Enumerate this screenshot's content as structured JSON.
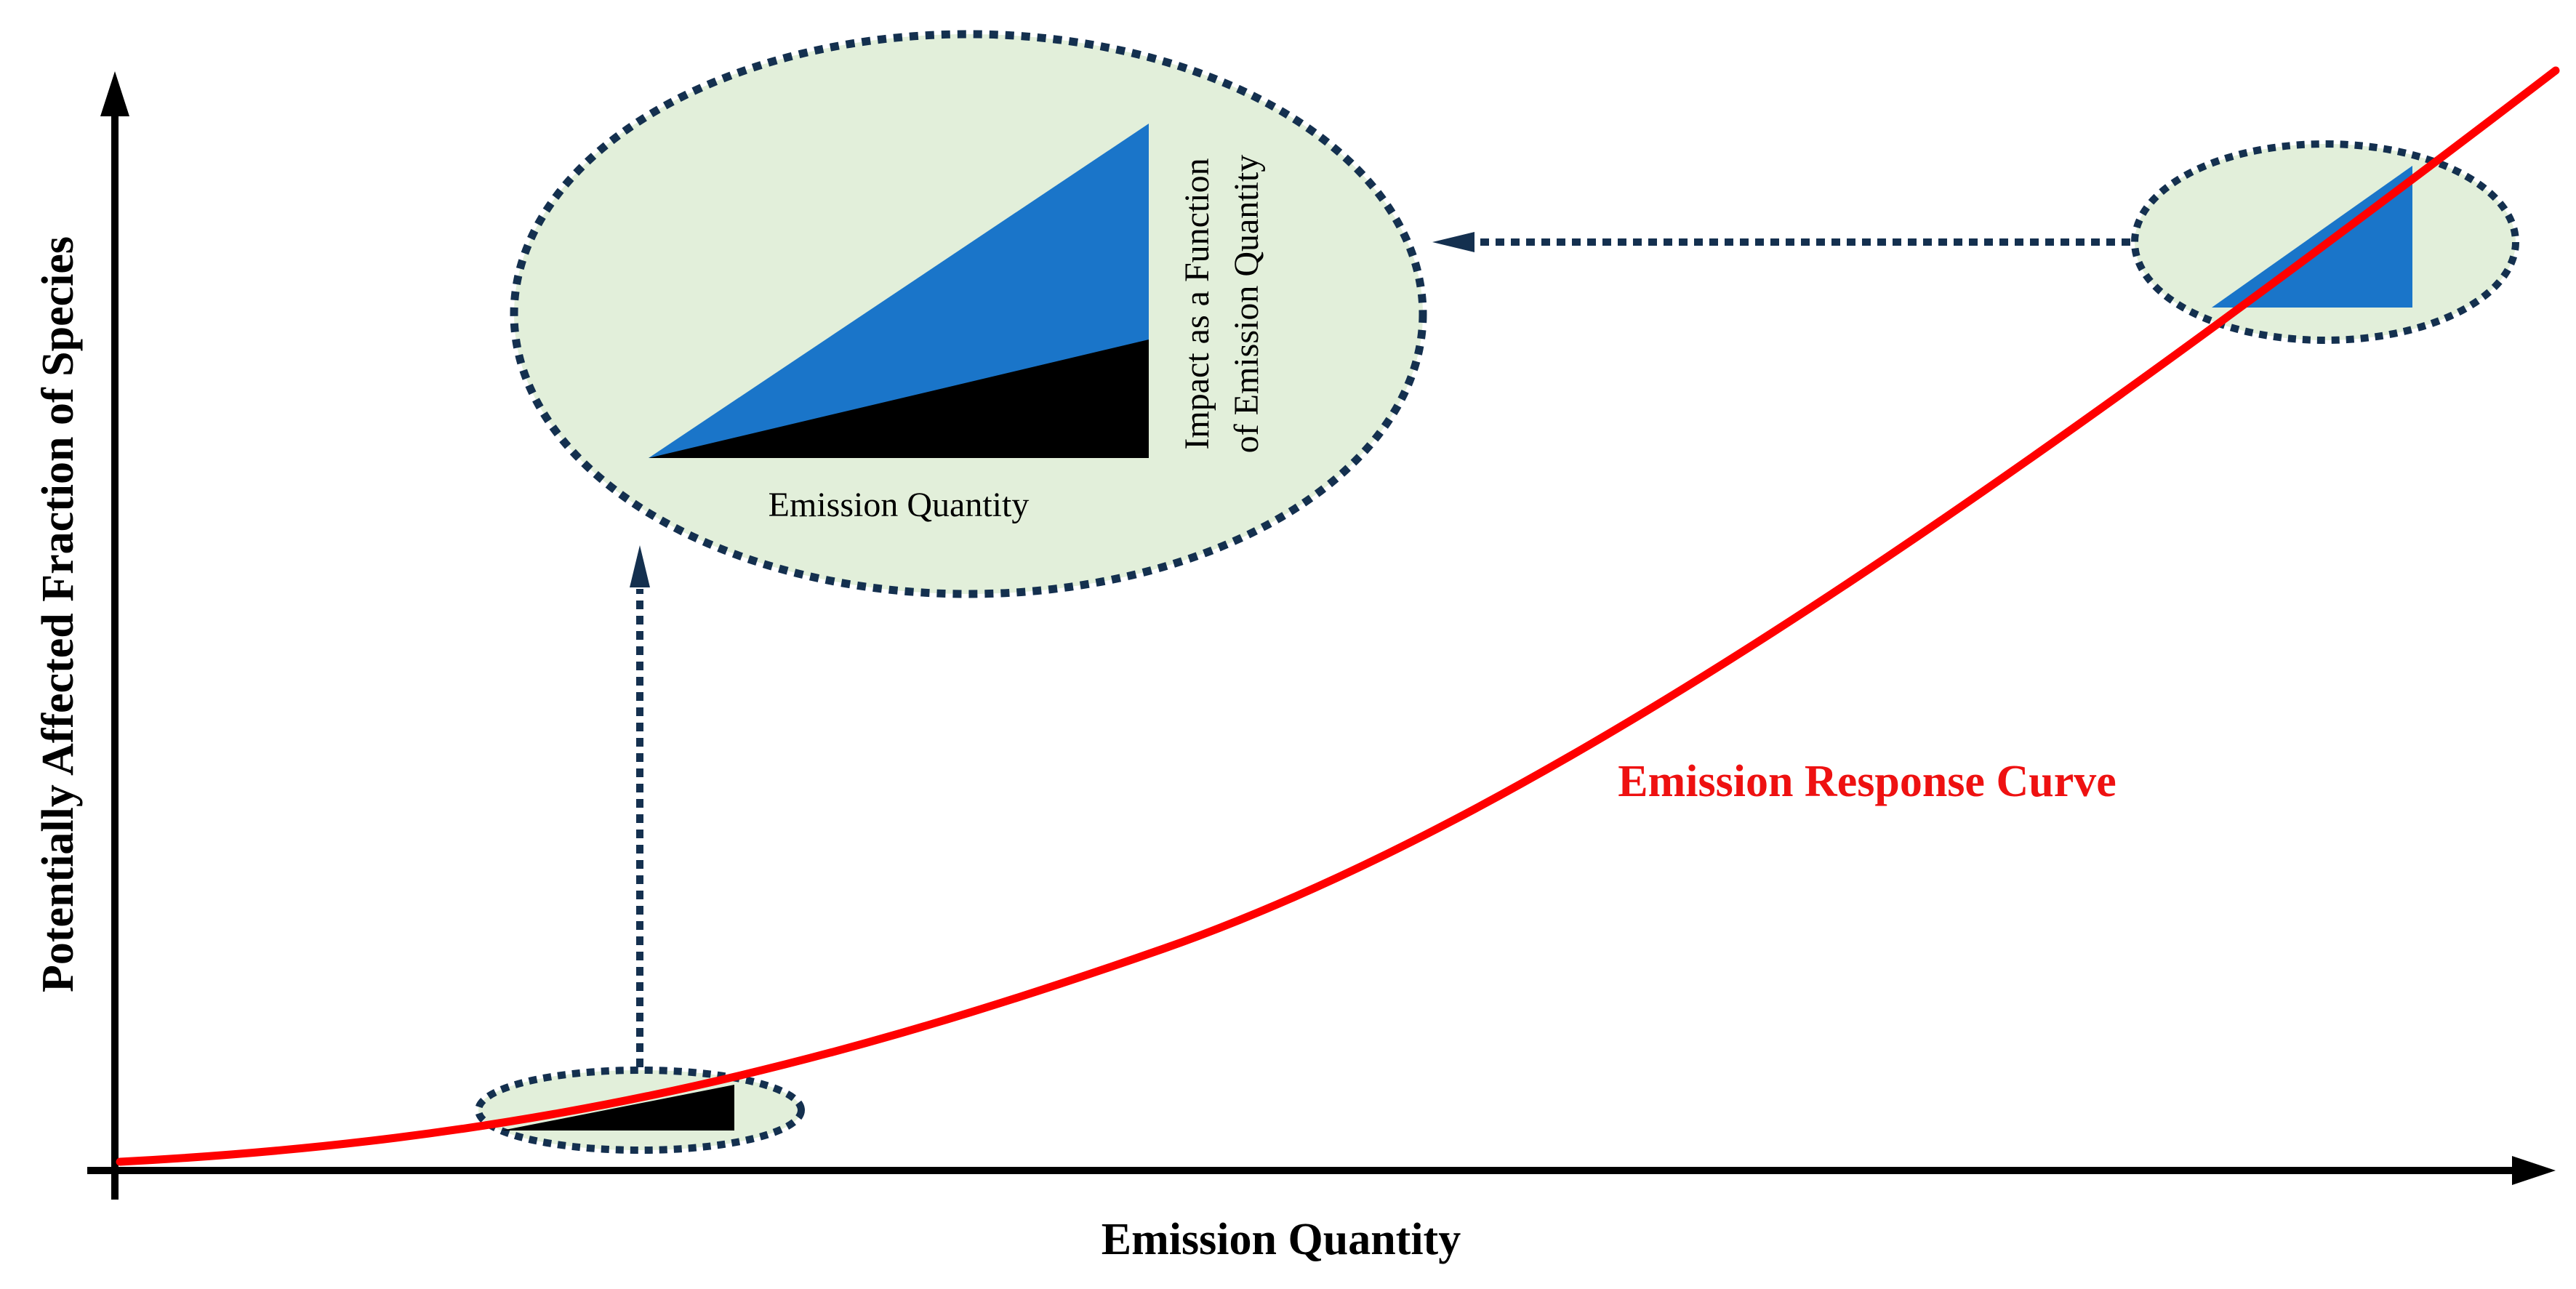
{
  "diagram": {
    "x_axis_label": "Emission Quantity",
    "y_axis_label": "Potentially Affected Fraction of Species",
    "curve_label": "Emission Response Curve",
    "inset": {
      "x_label": "Emission Quantity",
      "y_label_line1": "Impact as a Function",
      "y_label_line2": "of Emission Quantity"
    }
  },
  "colors": {
    "curve": "#ff0000",
    "curve_label": "#ee1111",
    "axis": "#000000",
    "ellipse_fill": "#e2efda",
    "ellipse_border": "#14304f",
    "arrow": "#14304f",
    "blue_triangle": "#1a75c9",
    "black_triangle": "#000000"
  }
}
